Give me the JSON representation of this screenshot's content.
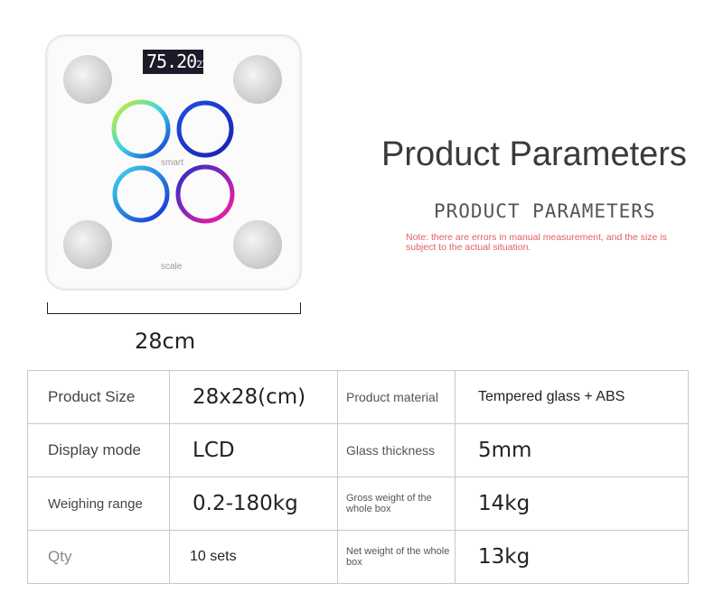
{
  "product_image": {
    "lcd_reading": "75.20",
    "lcd_unit": "kg",
    "lcd_temp": "23°",
    "logo_text_top": "smart",
    "logo_text_bottom": "scale",
    "dimension_label": "28cm"
  },
  "header": {
    "title": "Product Parameters",
    "subtitle": "PRODUCT PARAMETERS",
    "note": "Note: there are errors in manual measurement, and the size is subject to the actual situation."
  },
  "colors": {
    "note": "#e06060",
    "title": "#3a3a3a"
  },
  "specs": [
    {
      "label": "Product Size",
      "value": "28x28(cm)",
      "label2": "Product material",
      "value2": "Tempered glass + ABS"
    },
    {
      "label": "Display mode",
      "value": "LCD",
      "label2": "Glass thickness",
      "value2": "5mm"
    },
    {
      "label": "Weighing range",
      "value": "0.2-180kg",
      "label2": "Gross weight of the whole box",
      "value2": "14kg"
    },
    {
      "label": "Qty",
      "value": "10 sets",
      "label2": "Net weight of the whole box",
      "value2": "13kg"
    }
  ]
}
